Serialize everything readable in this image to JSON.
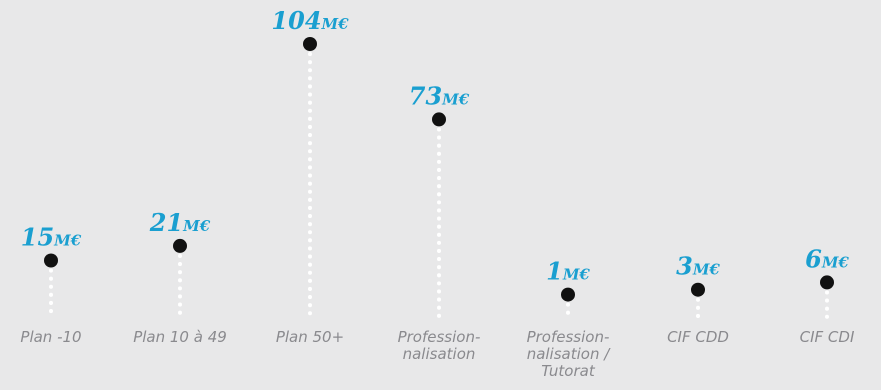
{
  "chart_data": {
    "type": "scatter",
    "categories": [
      [
        "Plan -10"
      ],
      [
        "Plan 10 à 49"
      ],
      [
        "Plan 50+"
      ],
      [
        "Profession-",
        "nalisation"
      ],
      [
        "Profession-",
        "nalisation /",
        "Tutorat"
      ],
      [
        "CIF CDD"
      ],
      [
        "CIF CDI"
      ]
    ],
    "values": [
      15,
      21,
      104,
      73,
      1,
      3,
      6
    ],
    "value_labels": [
      "15",
      "21",
      "104",
      "73",
      "1",
      "3",
      "6"
    ],
    "unit": "M€",
    "ylim": [
      0,
      104
    ],
    "grid": false,
    "colors": {
      "background": "#e8e8e9",
      "value_text": "#1a9fd0",
      "marker": "#111111",
      "stem": "#ffffff",
      "category_text": "#8a8a8e"
    }
  }
}
